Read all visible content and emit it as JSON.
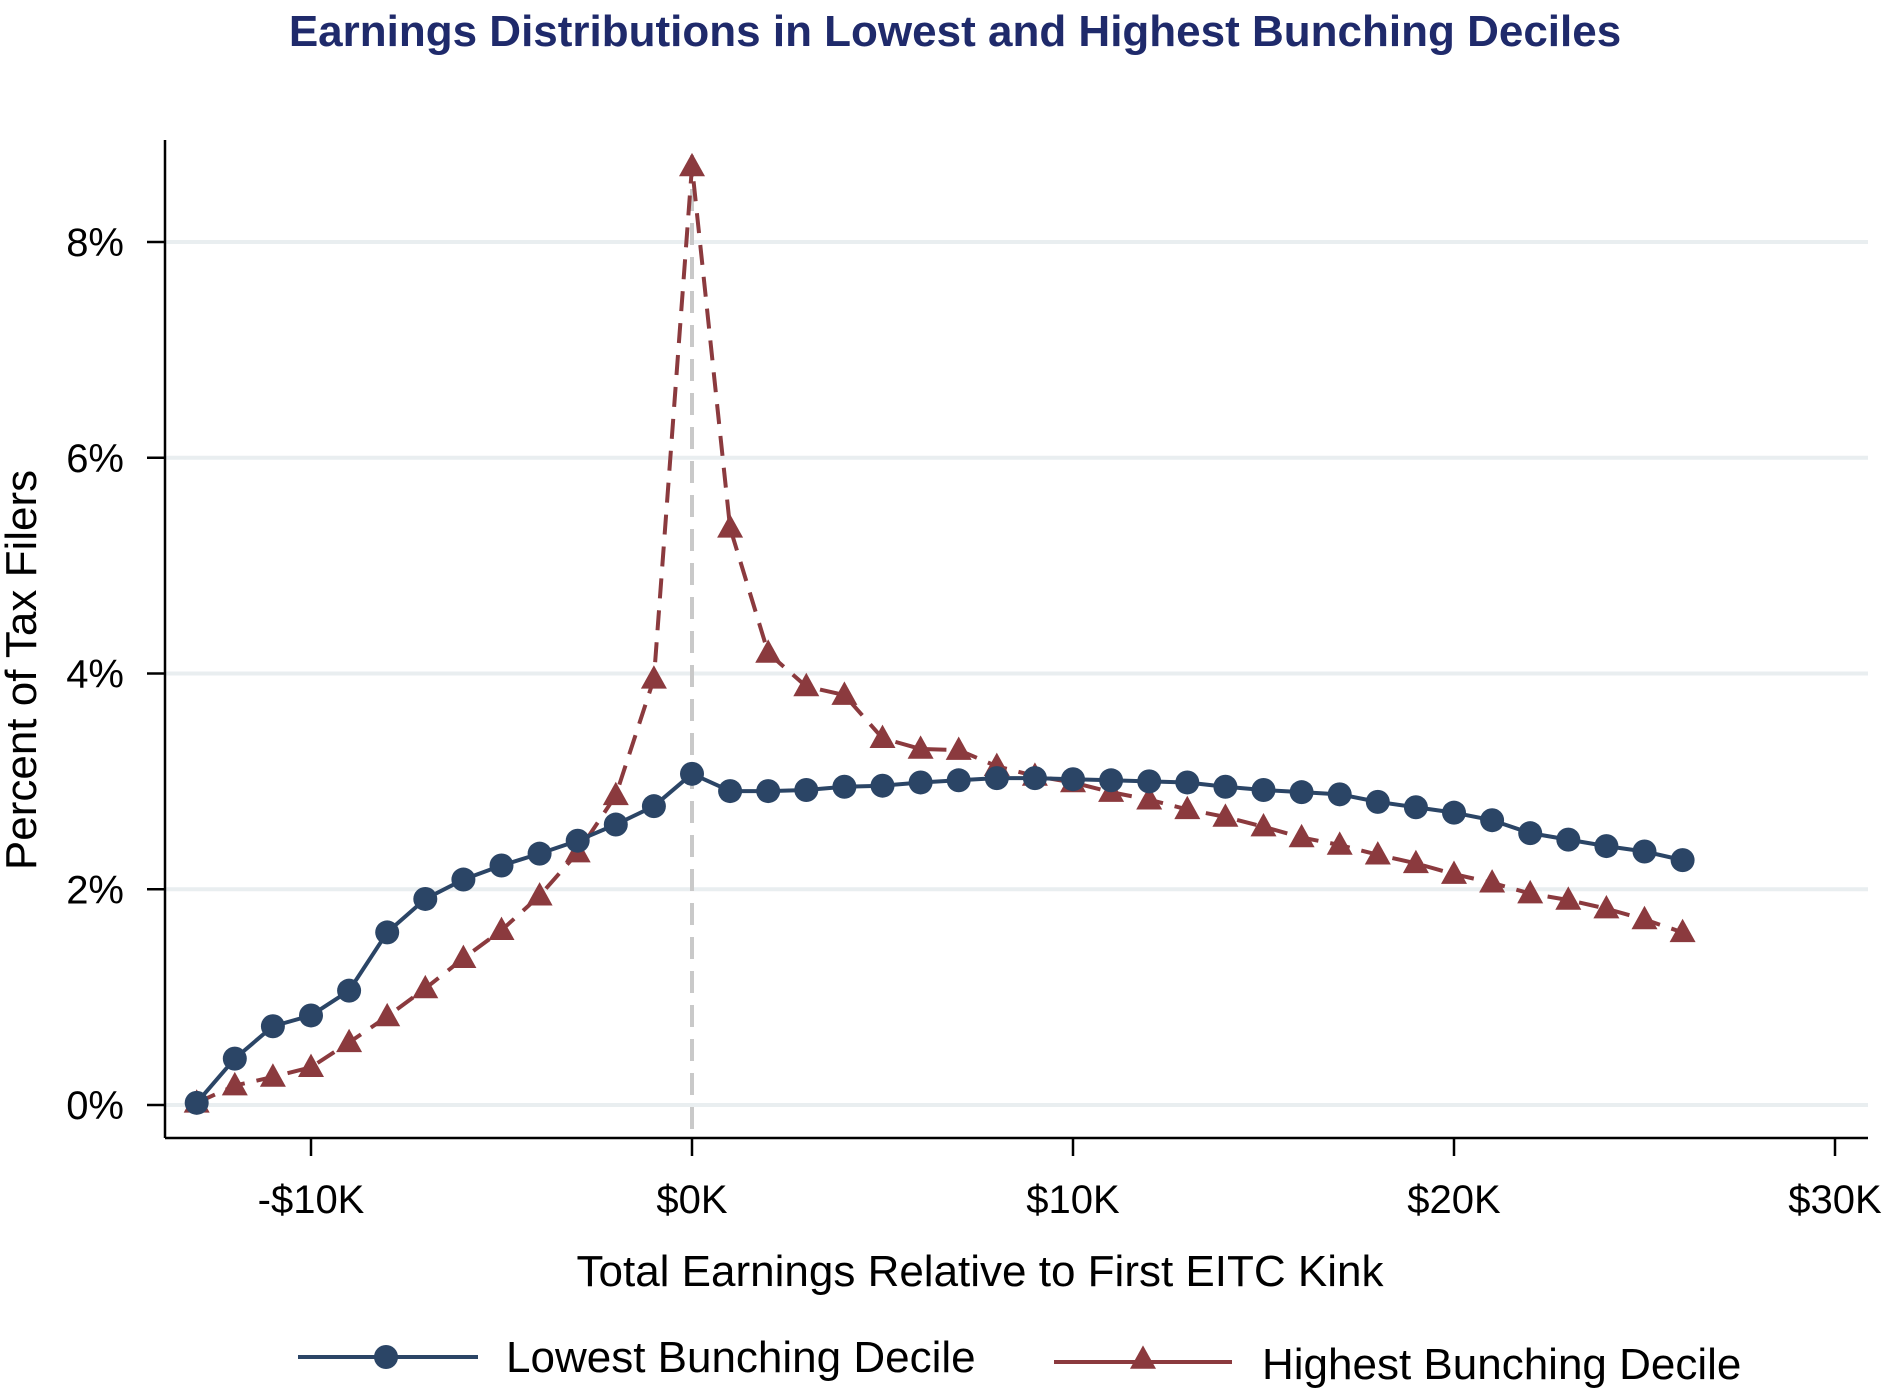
{
  "chart_data": {
    "type": "line",
    "title": "Earnings Distributions in Lowest and Highest Bunching Deciles",
    "xlabel": "Total Earnings Relative to First EITC Kink",
    "ylabel": "Percent of Tax Filers",
    "xlim": [
      -13,
      30
    ],
    "ylim": [
      0,
      8.8
    ],
    "x_ticks": [
      -10,
      0,
      10,
      20,
      30
    ],
    "x_tick_labels": [
      "-$10K",
      "$0K",
      "$10K",
      "$20K",
      "$30K"
    ],
    "y_ticks": [
      0,
      2,
      4,
      6,
      8
    ],
    "y_tick_labels": [
      "0%",
      "2%",
      "4%",
      "6%",
      "8%"
    ],
    "grid": true,
    "reference_line_x": 0,
    "legend_position": "bottom",
    "x": [
      -13,
      -12,
      -11,
      -10,
      -9,
      -8,
      -7,
      -6,
      -5,
      -4,
      -3,
      -2,
      -1,
      0,
      1,
      2,
      3,
      4,
      5,
      6,
      7,
      8,
      9,
      10,
      11,
      12,
      13,
      14,
      15,
      16,
      17,
      18,
      19,
      20,
      21,
      22,
      23,
      24,
      25,
      26
    ],
    "series": [
      {
        "name": "Lowest Bunching Decile",
        "color": "#2b4566",
        "marker": "circle",
        "line_style": "solid",
        "values": [
          0.02,
          0.43,
          0.73,
          0.83,
          1.06,
          1.6,
          1.91,
          2.09,
          2.22,
          2.33,
          2.45,
          2.6,
          2.77,
          3.07,
          2.91,
          2.91,
          2.92,
          2.95,
          2.96,
          2.99,
          3.01,
          3.03,
          3.03,
          3.02,
          3.01,
          3.0,
          2.99,
          2.95,
          2.92,
          2.9,
          2.88,
          2.81,
          2.76,
          2.71,
          2.64,
          2.52,
          2.46,
          2.4,
          2.35,
          2.27
        ]
      },
      {
        "name": "Highest Bunching Decile",
        "color": "#8b3a3e",
        "marker": "triangle",
        "line_style": "dashed",
        "values": [
          0.02,
          0.18,
          0.26,
          0.35,
          0.58,
          0.82,
          1.08,
          1.36,
          1.62,
          1.94,
          2.34,
          2.87,
          3.95,
          8.7,
          5.35,
          4.19,
          3.88,
          3.8,
          3.4,
          3.3,
          3.29,
          3.14,
          3.05,
          2.99,
          2.9,
          2.83,
          2.74,
          2.67,
          2.58,
          2.48,
          2.41,
          2.32,
          2.24,
          2.14,
          2.06,
          1.96,
          1.9,
          1.82,
          1.72,
          1.6
        ]
      }
    ]
  },
  "colors": {
    "title": "#1f2a6b",
    "grid": "#e9eef0",
    "reference_line": "#c9c9c9",
    "axis": "#000000"
  }
}
